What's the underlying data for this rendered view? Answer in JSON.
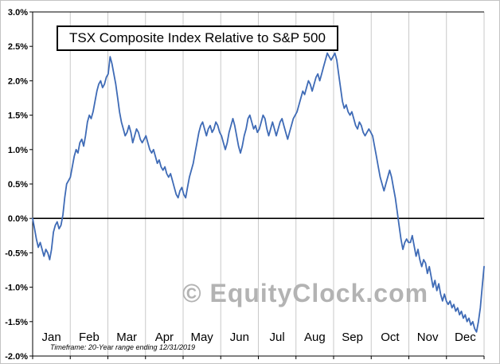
{
  "chart_data": {
    "type": "line",
    "title": "TSX Composite Index Relative to S&P 500",
    "watermark": "© EquityClock.com",
    "footnote": "Timeframe: 20-Year range ending 12/31/2019",
    "x_categories": [
      "Jan",
      "Feb",
      "Mar",
      "Apr",
      "May",
      "Jun",
      "Jul",
      "Aug",
      "Sep",
      "Oct",
      "Nov",
      "Dec"
    ],
    "x_note": "240 uniformly spaced points spanning Jan 1 to Dec 31 (20 per month)",
    "ylabel_format": "percent, one decimal",
    "ylim": [
      -2.0,
      3.0
    ],
    "ytick_step": 0.5,
    "grid": "vertical gridlines at each month boundary; bold horizontal axis line at 0.0%",
    "legend": "none",
    "colors": {
      "line": "#3f6bb6",
      "grid": "#c9c9c9",
      "axis": "#000000",
      "watermark": "#b3b3b3"
    },
    "series": [
      {
        "name": "TSX Composite Index relative to S&P 500 (20-year average)",
        "color": "#3f6bb6",
        "values": [
          0.0,
          -0.15,
          -0.3,
          -0.42,
          -0.35,
          -0.45,
          -0.55,
          -0.45,
          -0.5,
          -0.6,
          -0.45,
          -0.2,
          -0.1,
          -0.05,
          -0.15,
          -0.1,
          0.05,
          0.3,
          0.5,
          0.55,
          0.6,
          0.75,
          0.9,
          1.0,
          0.95,
          1.1,
          1.15,
          1.05,
          1.2,
          1.4,
          1.5,
          1.45,
          1.55,
          1.7,
          1.85,
          1.95,
          2.0,
          1.9,
          1.95,
          2.05,
          2.1,
          2.35,
          2.25,
          2.1,
          1.95,
          1.75,
          1.55,
          1.4,
          1.3,
          1.2,
          1.25,
          1.35,
          1.25,
          1.1,
          1.2,
          1.3,
          1.25,
          1.15,
          1.1,
          1.15,
          1.2,
          1.1,
          1.0,
          0.95,
          1.0,
          0.9,
          0.8,
          0.85,
          0.75,
          0.7,
          0.75,
          0.65,
          0.6,
          0.65,
          0.55,
          0.45,
          0.35,
          0.3,
          0.4,
          0.45,
          0.35,
          0.3,
          0.45,
          0.6,
          0.7,
          0.8,
          0.95,
          1.1,
          1.25,
          1.35,
          1.4,
          1.3,
          1.2,
          1.3,
          1.35,
          1.25,
          1.3,
          1.4,
          1.35,
          1.25,
          1.2,
          1.1,
          1.0,
          1.1,
          1.25,
          1.35,
          1.45,
          1.35,
          1.2,
          1.05,
          0.95,
          1.05,
          1.2,
          1.3,
          1.45,
          1.5,
          1.4,
          1.3,
          1.35,
          1.25,
          1.3,
          1.4,
          1.5,
          1.45,
          1.3,
          1.2,
          1.3,
          1.4,
          1.3,
          1.2,
          1.3,
          1.4,
          1.45,
          1.35,
          1.25,
          1.15,
          1.25,
          1.35,
          1.45,
          1.5,
          1.55,
          1.65,
          1.75,
          1.85,
          1.8,
          1.9,
          2.0,
          1.95,
          1.85,
          1.95,
          2.05,
          2.1,
          2.0,
          2.1,
          2.2,
          2.3,
          2.4,
          2.35,
          2.3,
          2.35,
          2.4,
          2.3,
          2.1,
          1.9,
          1.7,
          1.6,
          1.65,
          1.55,
          1.5,
          1.55,
          1.45,
          1.35,
          1.3,
          1.4,
          1.35,
          1.25,
          1.2,
          1.25,
          1.3,
          1.25,
          1.2,
          1.05,
          0.9,
          0.75,
          0.6,
          0.5,
          0.4,
          0.5,
          0.6,
          0.7,
          0.6,
          0.45,
          0.3,
          0.1,
          -0.1,
          -0.3,
          -0.45,
          -0.35,
          -0.3,
          -0.35,
          -0.35,
          -0.25,
          -0.4,
          -0.55,
          -0.45,
          -0.6,
          -0.7,
          -0.6,
          -0.65,
          -0.8,
          -0.7,
          -0.85,
          -1.0,
          -0.9,
          -1.05,
          -0.95,
          -1.1,
          -1.2,
          -1.1,
          -1.2,
          -1.25,
          -1.2,
          -1.3,
          -1.25,
          -1.35,
          -1.3,
          -1.4,
          -1.35,
          -1.45,
          -1.4,
          -1.5,
          -1.45,
          -1.55,
          -1.5,
          -1.6,
          -1.65,
          -1.5,
          -1.3,
          -1.0,
          -0.7
        ]
      }
    ]
  }
}
